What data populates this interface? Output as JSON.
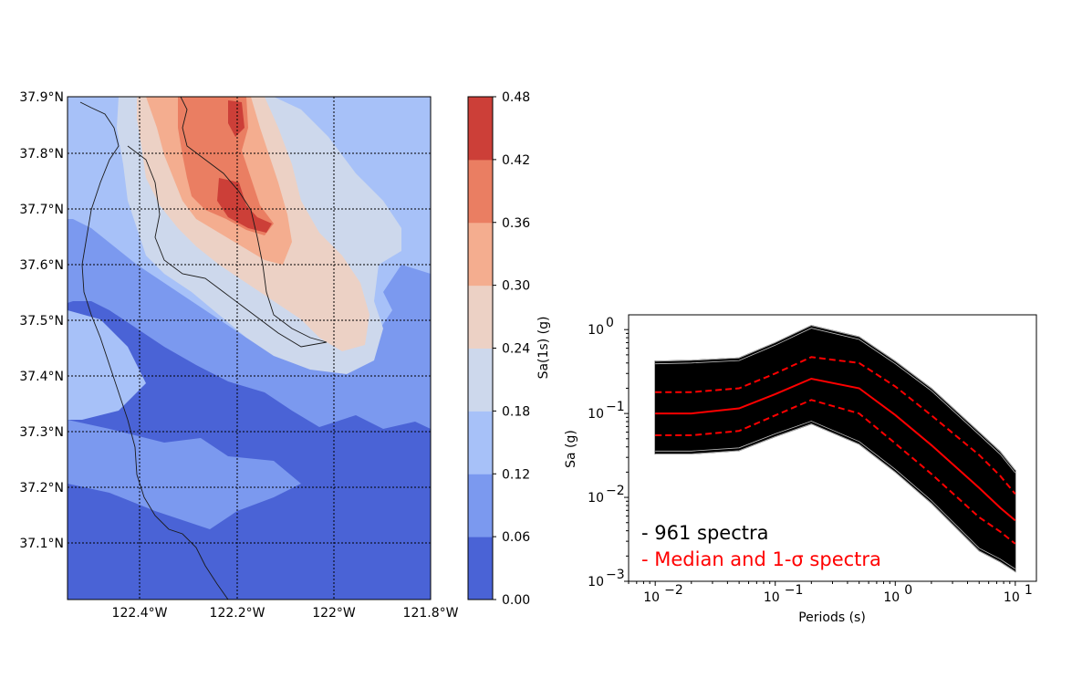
{
  "colors": {
    "levels": [
      "#4a63d6",
      "#7b99ef",
      "#a7c1f8",
      "#cdd8ec",
      "#ecd1c5",
      "#f4ad8f",
      "#ea7e62",
      "#cc3f38"
    ],
    "ocean": "#4e64d4",
    "spectra": "#000000",
    "median": "#ff0000"
  },
  "chart_data": [
    {
      "type": "heatmap",
      "xlabel": "",
      "ylabel": "",
      "x_ticks": [
        "122.4°W",
        "122.2°W",
        "122°W",
        "121.8°W"
      ],
      "y_ticks": [
        "37.9°N",
        "37.8°N",
        "37.7°N",
        "37.6°N",
        "37.5°N",
        "37.4°N",
        "37.3°N",
        "37.2°N",
        "37.1°N"
      ],
      "x_range": [
        -122.55,
        -121.8
      ],
      "y_range": [
        37.0,
        37.9
      ],
      "grid": true,
      "colorbar": {
        "label": "Sa(1s) (g)",
        "ticks": [
          "0.00",
          "0.06",
          "0.12",
          "0.18",
          "0.24",
          "0.30",
          "0.36",
          "0.42",
          "0.48"
        ],
        "levels": [
          0.0,
          0.06,
          0.12,
          0.18,
          0.24,
          0.3,
          0.36,
          0.42,
          0.48
        ]
      },
      "peak": {
        "lon": -122.2,
        "lat": 37.7,
        "value": 0.45
      }
    },
    {
      "type": "line",
      "xlabel": "Periods (s)",
      "ylabel": "Sa (g)",
      "x_scale": "log",
      "y_scale": "log",
      "xlim": [
        0.006,
        15
      ],
      "ylim": [
        0.001,
        1.5
      ],
      "x_ticks": [
        {
          "base": "10",
          "exp": "−2",
          "v": 0.01
        },
        {
          "base": "10",
          "exp": "−1",
          "v": 0.1
        },
        {
          "base": "10",
          "exp": "0",
          "v": 1
        },
        {
          "base": "10",
          "exp": "1",
          "v": 10
        }
      ],
      "y_ticks": [
        {
          "base": "10",
          "exp": "−3",
          "v": 0.001
        },
        {
          "base": "10",
          "exp": "−2",
          "v": 0.01
        },
        {
          "base": "10",
          "exp": "−1",
          "v": 0.1
        },
        {
          "base": "10",
          "exp": "0",
          "v": 1
        }
      ],
      "x": [
        0.01,
        0.02,
        0.05,
        0.1,
        0.2,
        0.5,
        1,
        2,
        5,
        7.5,
        10
      ],
      "envelope_upper": [
        0.42,
        0.43,
        0.46,
        0.7,
        1.12,
        0.82,
        0.42,
        0.2,
        0.06,
        0.035,
        0.021
      ],
      "envelope_lower": [
        0.033,
        0.033,
        0.036,
        0.053,
        0.075,
        0.043,
        0.02,
        0.0085,
        0.0023,
        0.0017,
        0.0013
      ],
      "series": [
        {
          "name": "Median",
          "style": "solid",
          "values": [
            0.1,
            0.1,
            0.115,
            0.17,
            0.26,
            0.2,
            0.096,
            0.042,
            0.013,
            0.0075,
            0.0053
          ]
        },
        {
          "name": "+1σ",
          "style": "dashed",
          "values": [
            0.18,
            0.18,
            0.2,
            0.3,
            0.47,
            0.4,
            0.21,
            0.095,
            0.032,
            0.018,
            0.011
          ]
        },
        {
          "name": "−1σ",
          "style": "dashed",
          "values": [
            0.055,
            0.055,
            0.062,
            0.095,
            0.145,
            0.1,
            0.044,
            0.019,
            0.0058,
            0.0039,
            0.0028
          ]
        }
      ],
      "legend": [
        {
          "text": "- 961 spectra",
          "color": "#000000"
        },
        {
          "text": "- Median and 1-σ spectra",
          "color": "#ff0000"
        }
      ],
      "legend_placement": "lower-left"
    }
  ]
}
